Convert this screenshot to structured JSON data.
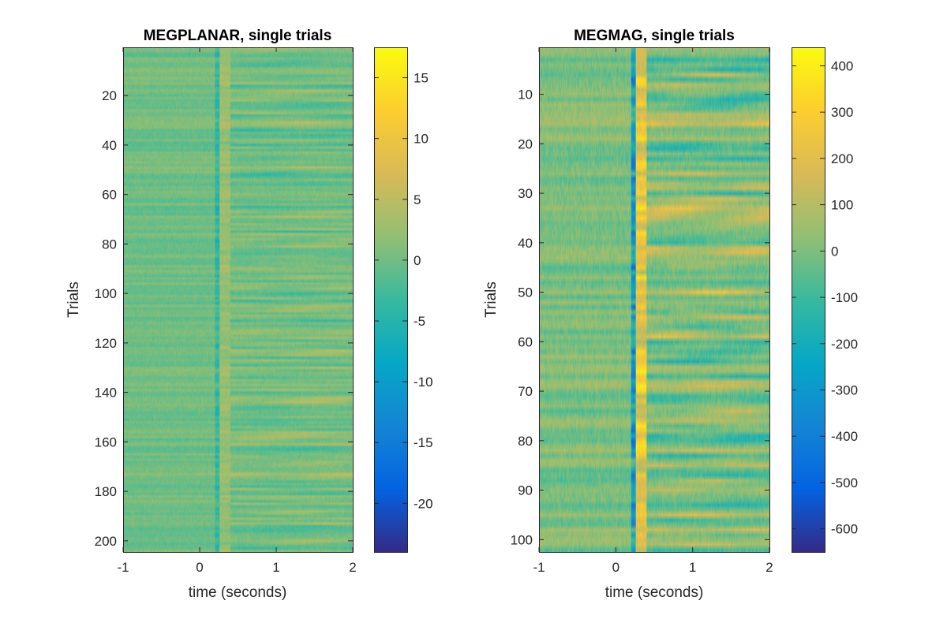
{
  "chart_data": [
    {
      "type": "heatmap",
      "title": "MEGPLANAR, single trials",
      "xlabel": "time (seconds)",
      "ylabel": "Trials",
      "xlim": [
        -1,
        2
      ],
      "ylim": [
        1,
        204
      ],
      "y_reversed": true,
      "x_ticks": [
        -1,
        0,
        1,
        2
      ],
      "x_tick_labels": [
        "-1",
        "0",
        "1",
        "2"
      ],
      "y_ticks": [
        20,
        40,
        60,
        80,
        100,
        120,
        140,
        160,
        180,
        200
      ],
      "y_tick_labels": [
        "20",
        "40",
        "60",
        "80",
        "100",
        "120",
        "140",
        "160",
        "180",
        "200"
      ],
      "n_trials": 204,
      "colormap": "parula",
      "clim": [
        -24,
        17.5
      ],
      "colorbar_ticks": [
        15,
        10,
        5,
        0,
        -5,
        -10,
        -15,
        -20
      ],
      "colorbar_tick_labels": [
        "15",
        "10",
        "5",
        "0",
        "-5",
        "-10",
        "-15",
        "-20"
      ],
      "stimulus_onset": 0.2
    },
    {
      "type": "heatmap",
      "title": "MEGMAG, single trials",
      "xlabel": "time (seconds)",
      "ylabel": "Trials",
      "xlim": [
        -1,
        2
      ],
      "ylim": [
        1,
        102
      ],
      "y_reversed": true,
      "x_ticks": [
        -1,
        0,
        1,
        2
      ],
      "x_tick_labels": [
        "-1",
        "0",
        "1",
        "2"
      ],
      "y_ticks": [
        10,
        20,
        30,
        40,
        50,
        60,
        70,
        80,
        90,
        100
      ],
      "y_tick_labels": [
        "10",
        "20",
        "30",
        "40",
        "50",
        "60",
        "70",
        "80",
        "90",
        "100"
      ],
      "n_trials": 102,
      "colormap": "parula",
      "clim": [
        -650,
        440
      ],
      "colorbar_ticks": [
        400,
        300,
        200,
        100,
        0,
        -100,
        -200,
        -300,
        -400,
        -500,
        -600
      ],
      "colorbar_tick_labels": [
        "400",
        "300",
        "200",
        "100",
        "0",
        "-100",
        "-200",
        "-300",
        "-400",
        "-500",
        "-600"
      ],
      "stimulus_onset": 0.2
    }
  ]
}
